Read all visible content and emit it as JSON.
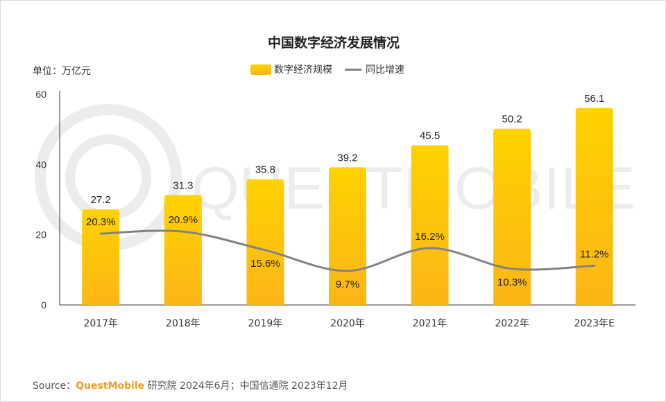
{
  "chart_data": {
    "type": "bar",
    "title": "中国数字经济发展情况",
    "unit_label": "单位：万亿元",
    "categories": [
      "2017年",
      "2018年",
      "2019年",
      "2020年",
      "2021年",
      "2022年",
      "2023年E"
    ],
    "series": [
      {
        "name": "数字经济规模",
        "kind": "bar",
        "values": [
          27.2,
          31.3,
          35.8,
          39.2,
          45.5,
          50.2,
          56.1
        ],
        "labels": [
          "27.2",
          "31.3",
          "35.8",
          "39.2",
          "45.5",
          "50.2",
          "56.1"
        ]
      },
      {
        "name": "同比增速",
        "kind": "line",
        "values": [
          20.3,
          20.9,
          15.6,
          9.7,
          16.2,
          10.3,
          11.2
        ],
        "labels": [
          "20.3%",
          "20.9%",
          "15.6%",
          "9.7%",
          "16.2%",
          "10.3%",
          "11.2%"
        ]
      }
    ],
    "yticks": [
      "0",
      "20",
      "40",
      "60"
    ],
    "ylim": [
      0,
      60
    ],
    "grid": false,
    "legend_position": "top-center",
    "colors": {
      "bar_top": "#ffd200",
      "bar_bottom": "#fbb517",
      "line": "#828282",
      "axis": "#333333"
    }
  },
  "watermark": "QUESTMOBILE",
  "source": {
    "prefix": "Source：",
    "brand": "QuestMobile",
    "rest": " 研究院 2024年6月；中国信通院 2023年12月"
  }
}
